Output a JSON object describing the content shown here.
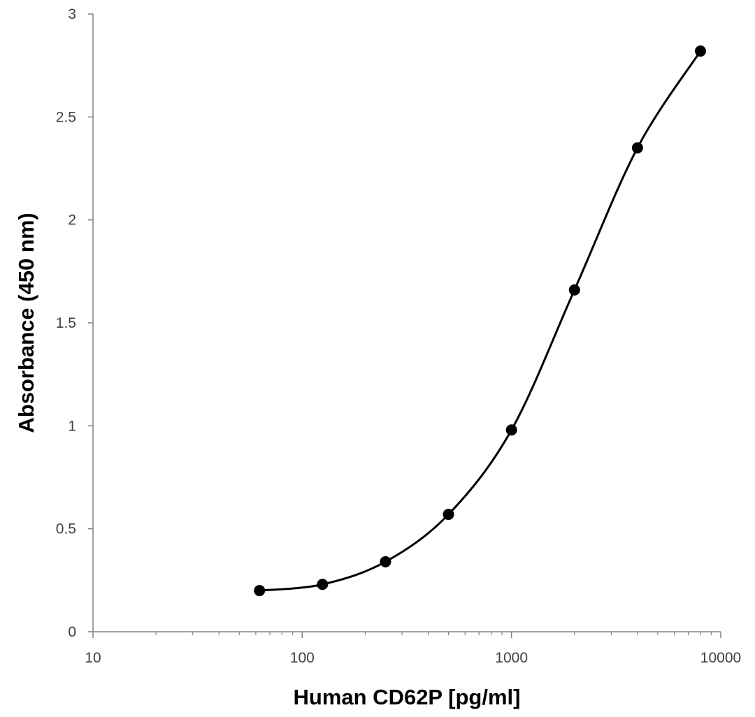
{
  "chart_data": {
    "type": "scatter",
    "title": "",
    "xlabel": "Human CD62P [pg/ml]",
    "ylabel": "Absorbance (450 nm)",
    "x_scale": "log",
    "xlim": [
      10,
      10000
    ],
    "ylim": [
      0,
      3
    ],
    "x_ticks": [
      10,
      100,
      1000,
      10000
    ],
    "x_tick_labels": [
      "10",
      "100",
      "1000",
      "10000"
    ],
    "y_ticks": [
      0,
      0.5,
      1,
      1.5,
      2,
      2.5,
      3
    ],
    "y_tick_labels": [
      "0",
      "0.5",
      "1",
      "1.5",
      "2",
      "2.5",
      "3"
    ],
    "grid": false,
    "legend": "none",
    "series": [
      {
        "x": [
          62.5,
          125,
          250,
          500,
          1000,
          2000,
          4000,
          8000
        ],
        "y": [
          0.2,
          0.23,
          0.34,
          0.57,
          0.98,
          1.66,
          2.35,
          2.82
        ],
        "marker": "circle",
        "line": "smooth",
        "color": "#000000"
      }
    ]
  }
}
